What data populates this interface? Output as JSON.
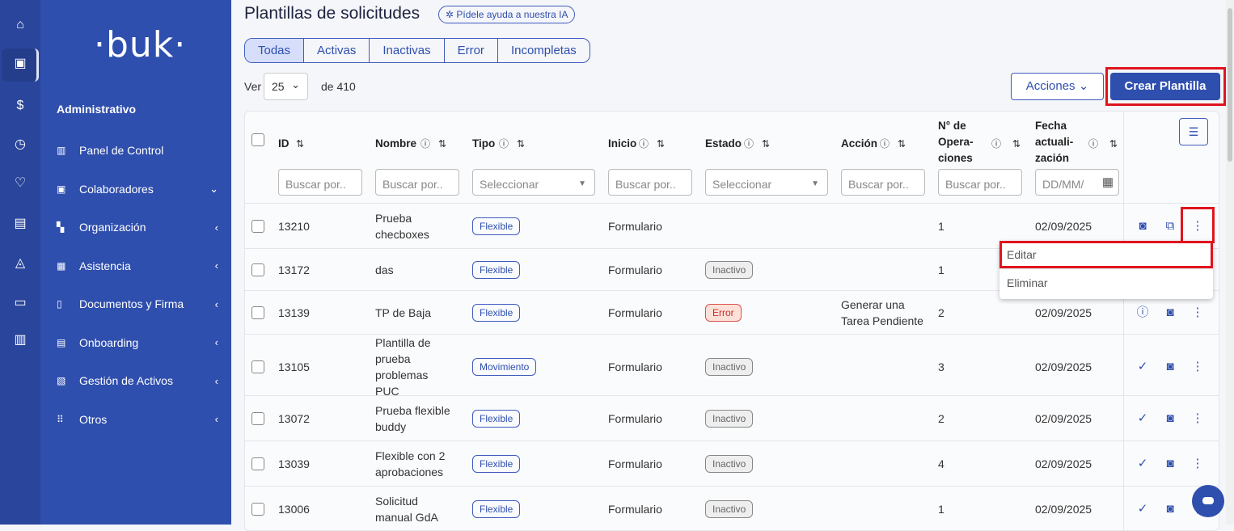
{
  "rail": {
    "icons": [
      "home-icon",
      "clipboard-clock-icon",
      "dollar-icon",
      "clock-icon",
      "hand-heart-icon",
      "gift-icon",
      "graduation-cap-icon",
      "folder-icon",
      "store-icon"
    ]
  },
  "sidebar": {
    "logo": "·buk·",
    "section": "Administrativo",
    "items": [
      {
        "label": "Panel de Control",
        "icon": "chart-icon",
        "chevron": ""
      },
      {
        "label": "Colaboradores",
        "icon": "id-badge-icon",
        "chevron": "⌄"
      },
      {
        "label": "Organización",
        "icon": "org-chart-icon",
        "chevron": "‹"
      },
      {
        "label": "Asistencia",
        "icon": "calendar-check-icon",
        "chevron": "‹"
      },
      {
        "label": "Documentos y Firma",
        "icon": "documents-icon",
        "chevron": "‹"
      },
      {
        "label": "Onboarding",
        "icon": "onboarding-icon",
        "chevron": "‹"
      },
      {
        "label": "Gestión de Activos",
        "icon": "asset-icon",
        "chevron": "‹"
      },
      {
        "label": "Otros",
        "icon": "grid-icon",
        "chevron": "‹"
      }
    ]
  },
  "header": {
    "title": "Plantillas de solicitudes",
    "ia_button": "Pídele ayuda a nuestra IA"
  },
  "tabs": [
    {
      "label": "Todas",
      "selected": true
    },
    {
      "label": "Activas"
    },
    {
      "label": "Inactivas"
    },
    {
      "label": "Error"
    },
    {
      "label": "Incompletas"
    }
  ],
  "pagination": {
    "ver": "Ver",
    "per_page": "25",
    "total": "de 410"
  },
  "toolbar": {
    "acciones": "Acciones",
    "crear": "Crear Plantilla"
  },
  "columns": [
    {
      "label": "ID",
      "filter": "Buscar por.."
    },
    {
      "label": "Nombre",
      "filter": "Buscar por.."
    },
    {
      "label": "Tipo",
      "filter": "Seleccionar"
    },
    {
      "label": "Inicio",
      "filter": "Buscar por.."
    },
    {
      "label": "Estado",
      "filter": "Seleccionar"
    },
    {
      "label": "Acción",
      "filter": "Buscar por.."
    },
    {
      "label": "N° de Opera- ciones",
      "filter": "Buscar por.."
    },
    {
      "label": "Fecha actuali- zación",
      "filter": "DD/MM/"
    }
  ],
  "rows": [
    {
      "id": "13210",
      "nombre": "Prueba checboxes",
      "tipo": "Flexible",
      "inicio": "Formulario",
      "estado": "",
      "accion": "",
      "ops": "1",
      "fecha": "02/09/2025",
      "icons": [
        "preview-icon",
        "duplicate-icon",
        "kebab-icon"
      ]
    },
    {
      "id": "13172",
      "nombre": "das",
      "tipo": "Flexible",
      "inicio": "Formulario",
      "estado": "Inactivo",
      "accion": "",
      "ops": "1",
      "fecha": "",
      "icons": []
    },
    {
      "id": "13139",
      "nombre": "TP de Baja",
      "tipo": "Flexible",
      "inicio": "Formulario",
      "estado": "Error",
      "accion": "Generar una Tarea Pendiente",
      "ops": "2",
      "fecha": "02/09/2025",
      "icons": [
        "info-icon",
        "preview-icon",
        "kebab-icon"
      ]
    },
    {
      "id": "13105",
      "nombre": "Plantilla de prueba problemas PUC",
      "tipo": "Movimiento",
      "inicio": "Formulario",
      "estado": "Inactivo",
      "accion": "",
      "ops": "3",
      "fecha": "02/09/2025",
      "icons": [
        "check-circle-icon",
        "preview-icon",
        "kebab-icon"
      ]
    },
    {
      "id": "13072",
      "nombre": "Prueba flexible buddy",
      "tipo": "Flexible",
      "inicio": "Formulario",
      "estado": "Inactivo",
      "accion": "",
      "ops": "2",
      "fecha": "02/09/2025",
      "icons": [
        "check-circle-icon",
        "preview-icon",
        "kebab-icon"
      ]
    },
    {
      "id": "13039",
      "nombre": "Flexible con 2 aprobaciones",
      "tipo": "Flexible",
      "inicio": "Formulario",
      "estado": "Inactivo",
      "accion": "",
      "ops": "4",
      "fecha": "02/09/2025",
      "icons": [
        "check-circle-icon",
        "preview-icon",
        "kebab-icon"
      ]
    },
    {
      "id": "13006",
      "nombre": "Solicitud manual GdA",
      "tipo": "Flexible",
      "inicio": "Formulario",
      "estado": "Inactivo",
      "accion": "",
      "ops": "1",
      "fecha": "02/09/2025",
      "icons": [
        "check-circle-icon",
        "preview-icon",
        "kebab-icon"
      ]
    }
  ],
  "menu": [
    {
      "label": "Editar"
    },
    {
      "label": "Eliminar"
    }
  ],
  "colors": {
    "primary": "#2f4fae",
    "rail": "#2a469c",
    "highlight": "#e0141e",
    "error_bg": "#fde0d8"
  }
}
